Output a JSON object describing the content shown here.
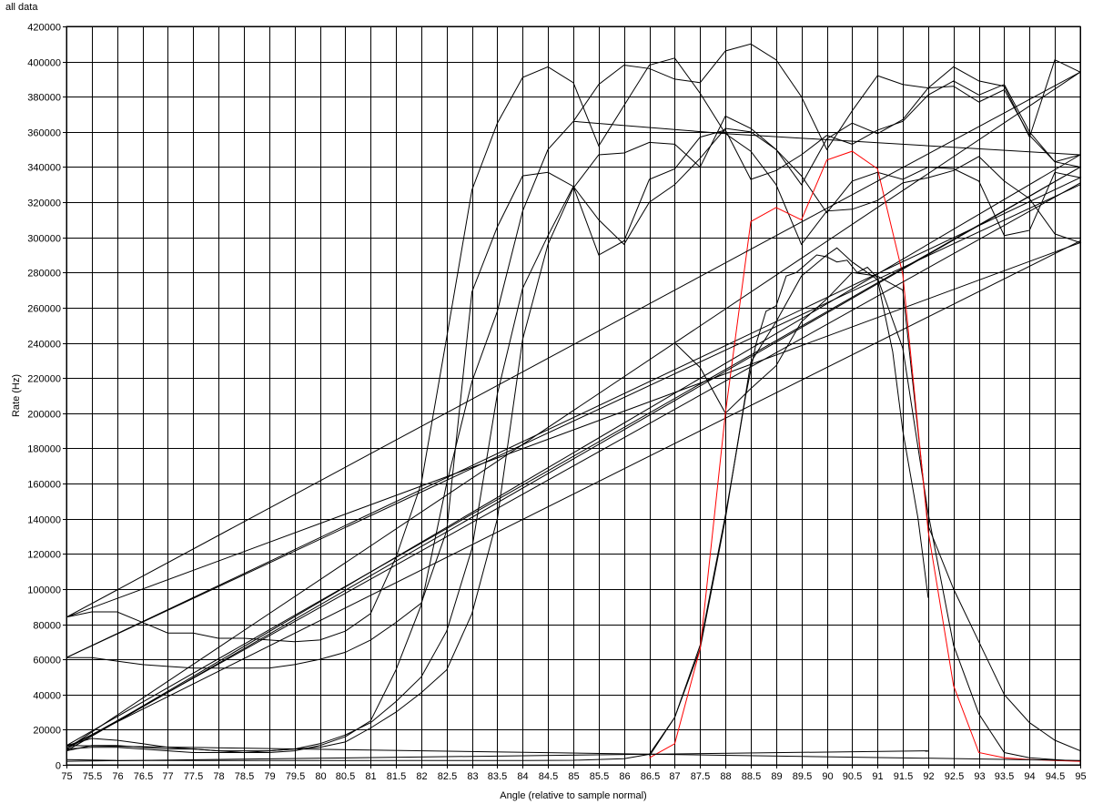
{
  "window": {
    "title": "all data"
  },
  "chart_data": {
    "type": "line",
    "title": "all data",
    "xlabel": "Angle (relative to sample normal)",
    "ylabel": "Rate (Hz)",
    "xlim": [
      75,
      95
    ],
    "ylim": [
      0,
      420000
    ],
    "x_ticks": [
      "75",
      "75.5",
      "76",
      "76.5",
      "77",
      "77.5",
      "78",
      "78.5",
      "79",
      "79.5",
      "80",
      "80.5",
      "81",
      "81.5",
      "82",
      "82.5",
      "83",
      "83.5",
      "84",
      "84.5",
      "85",
      "85.5",
      "86",
      "86.5",
      "87",
      "87.5",
      "88",
      "88.5",
      "89",
      "89.5",
      "90",
      "90.5",
      "91",
      "91.5",
      "92",
      "92.5",
      "93",
      "93.5",
      "94",
      "94.5",
      "95"
    ],
    "y_ticks": [
      "0",
      "20000",
      "40000",
      "60000",
      "80000",
      "100000",
      "120000",
      "140000",
      "160000",
      "180000",
      "200000",
      "220000",
      "240000",
      "260000",
      "280000",
      "300000",
      "320000",
      "340000",
      "360000",
      "380000",
      "400000",
      "420000"
    ],
    "grid": true,
    "legend": "none",
    "series": [
      {
        "color": "#000000",
        "x": [
          75,
          75.5,
          76,
          76.5,
          77,
          77.5,
          78,
          78.5,
          79,
          79.5,
          80,
          80.5,
          81,
          81.5,
          82,
          82.5,
          83,
          83.5,
          84,
          84.5,
          85,
          85.5,
          86,
          86.5,
          87,
          87.5,
          88,
          88.5,
          89,
          89.5,
          90,
          90.5,
          91,
          91.5,
          92,
          92.5,
          93,
          93.5,
          94,
          94.5,
          95,
          75
        ],
        "y": [
          84000,
          87000,
          87000,
          81000,
          75000,
          75000,
          72000,
          72000,
          71000,
          70000,
          71000,
          76000,
          86000,
          118000,
          160000,
          243000,
          327000,
          365000,
          391000,
          397000,
          388000,
          352000,
          375000,
          398000,
          402000,
          382000,
          359000,
          349000,
          330000,
          296000,
          315000,
          316000,
          321000,
          331000,
          334000,
          338000,
          346000,
          332000,
          322000,
          302000,
          297000,
          84000
        ]
      },
      {
        "color": "#000000",
        "x": [
          75,
          75.5,
          76,
          76.5,
          77,
          77.5,
          78,
          78.5,
          79,
          79.5,
          80,
          80.5,
          81,
          81.5,
          82,
          82.5,
          83,
          83.5,
          84,
          84.5,
          85,
          85.5,
          86,
          86.5,
          87,
          87.5,
          88,
          88.5,
          89,
          89.5,
          90,
          90.5,
          91,
          91.5,
          92,
          92.5,
          93,
          93.5,
          94,
          94.5,
          95,
          75
        ],
        "y": [
          61000,
          61000,
          59000,
          57000,
          56000,
          55000,
          55000,
          55000,
          55000,
          57000,
          60000,
          64000,
          71000,
          81000,
          92000,
          133000,
          269000,
          306000,
          335000,
          337000,
          329000,
          310000,
          296000,
          320000,
          330000,
          345000,
          362000,
          360000,
          350000,
          335000,
          314000,
          332000,
          337000,
          333000,
          340000,
          339000,
          332000,
          301000,
          304000,
          337000,
          334000,
          61000
        ]
      },
      {
        "color": "#000000",
        "x": [
          75,
          75.5,
          76,
          76.5,
          77,
          77.5,
          78,
          78.5,
          79,
          79.5,
          80,
          80.5,
          81,
          81.5,
          82,
          82.5,
          83,
          83.5,
          84,
          84.5,
          85,
          85.5,
          86,
          86.5,
          87,
          87.5,
          88,
          88.5,
          89,
          89.5,
          90,
          90.5,
          91,
          91.5,
          92,
          92.5,
          93,
          93.5,
          94,
          94.5,
          95,
          75
        ],
        "y": [
          8000,
          11000,
          11000,
          10000,
          9000,
          9000,
          8000,
          8000,
          8000,
          9000,
          12000,
          17000,
          24000,
          36000,
          50000,
          76000,
          123000,
          211000,
          271000,
          301000,
          329000,
          290000,
          298000,
          333000,
          339000,
          357000,
          361000,
          333000,
          338000,
          347000,
          358000,
          353000,
          361000,
          366000,
          381000,
          389000,
          381000,
          387000,
          360000,
          343000,
          347000,
          8000
        ]
      },
      {
        "color": "#000000",
        "x": [
          75,
          75.5,
          76,
          76.5,
          77,
          77.5,
          78,
          78.5,
          79,
          79.5,
          80,
          80.5,
          81,
          81.5,
          82,
          82.5,
          83,
          83.5,
          84,
          84.5,
          85,
          85.5,
          86,
          86.5,
          87,
          87.5,
          88,
          88.5,
          89,
          89.5,
          90,
          90.5,
          91,
          91.5,
          92,
          92.5,
          93,
          93.5,
          94,
          94.5,
          95,
          75
        ],
        "y": [
          11000,
          15000,
          14000,
          12000,
          10000,
          9000,
          8000,
          7000,
          8000,
          9000,
          10000,
          13000,
          21000,
          30000,
          41000,
          54000,
          86000,
          140000,
          242000,
          296000,
          328000,
          347000,
          348000,
          354000,
          353000,
          340000,
          369000,
          362000,
          350000,
          330000,
          356000,
          365000,
          359000,
          367000,
          385000,
          386000,
          377000,
          384000,
          358000,
          343000,
          340000,
          11000
        ]
      },
      {
        "color": "#000000",
        "x": [
          75,
          75.5,
          76,
          76.5,
          77,
          77.5,
          78,
          78.5,
          79,
          79.5,
          80,
          80.5,
          81,
          81.5,
          82,
          82.5,
          83,
          83.5,
          84,
          84.5,
          85,
          85.5,
          86,
          86.5,
          87,
          87.5,
          88,
          88.5,
          89,
          89.5,
          90,
          90.5,
          91,
          91.5,
          92,
          92.5,
          93,
          93.5,
          94,
          94.5,
          95,
          75
        ],
        "y": [
          9000,
          10000,
          10000,
          9000,
          8000,
          7000,
          7000,
          7000,
          7000,
          8000,
          11000,
          16000,
          25000,
          54000,
          91000,
          160000,
          218000,
          258000,
          315000,
          350000,
          366000,
          387000,
          398000,
          396000,
          390000,
          388000,
          406000,
          410000,
          401000,
          380000,
          350000,
          372000,
          392000,
          387000,
          385000,
          397000,
          389000,
          386000,
          357000,
          401000,
          394000,
          9000
        ]
      },
      {
        "color": "#000000",
        "x": [
          85,
          88,
          95
        ],
        "y": [
          366000,
          359000,
          347000
        ]
      },
      {
        "color": "#000000",
        "x": [
          75,
          95
        ],
        "y": [
          10000,
          298000
        ]
      },
      {
        "color": "#000000",
        "x": [
          87,
          87.5,
          88,
          88.5,
          89,
          89.5,
          90,
          90.5,
          91,
          91.5,
          92,
          92.5,
          93,
          93.5,
          94,
          94.5,
          95
        ],
        "y": [
          240000,
          226000,
          200000,
          214000,
          227000,
          252000,
          265000,
          280000,
          278000,
          270000,
          136000,
          100000,
          70000,
          40000,
          24000,
          14000,
          8000
        ]
      },
      {
        "color": "#000000",
        "x": [
          75,
          76,
          77,
          78,
          79,
          80,
          81,
          82,
          83,
          84,
          85,
          86,
          86.5,
          87,
          87.5,
          88,
          88.5,
          89,
          89.5,
          90,
          90.2,
          90.5,
          91,
          91.3,
          91.5,
          91.8,
          92
        ],
        "y": [
          3000,
          2500,
          2500,
          2500,
          2500,
          2500,
          2500,
          2500,
          2500,
          2500,
          2600,
          3500,
          6000,
          27000,
          66000,
          140000,
          229000,
          252000,
          278000,
          290000,
          294000,
          286000,
          276000,
          235000,
          190000,
          140000,
          95000
        ]
      },
      {
        "color": "#000000",
        "x": [
          86.5,
          87,
          87.5,
          88,
          88.2,
          88.4,
          88.6,
          88.8,
          89,
          89.2,
          89.4,
          89.6,
          89.8,
          90,
          90.2,
          90.4,
          90.6,
          90.8,
          91,
          91.5,
          92,
          92.5,
          93,
          93.5,
          94,
          94.5,
          95
        ],
        "y": [
          5000,
          27000,
          68000,
          142000,
          175000,
          210000,
          239000,
          258000,
          261000,
          278000,
          280000,
          285000,
          290000,
          289000,
          286000,
          287000,
          280000,
          283000,
          277000,
          237000,
          143000,
          68000,
          29000,
          7000,
          4000,
          3000,
          2000
        ]
      },
      {
        "color": "#ff0000",
        "x": [
          86.5,
          87,
          87.5,
          88,
          88.5,
          89,
          89.5,
          90,
          90.5,
          91,
          91.5,
          92,
          92.5,
          93,
          93.5,
          94,
          94.5,
          95
        ],
        "y": [
          4000,
          12000,
          66000,
          200000,
          309000,
          317000,
          310000,
          344000,
          349000,
          339000,
          279000,
          133000,
          45000,
          7000,
          4000,
          3000,
          2500,
          2000
        ]
      }
    ],
    "extra_lines": [
      {
        "color": "#000000",
        "x": [
          75,
          95
        ],
        "y": [
          84000,
          394000
        ]
      },
      {
        "color": "#000000",
        "x": [
          75,
          95
        ],
        "y": [
          61000,
          330000
        ]
      },
      {
        "color": "#000000",
        "x": [
          75,
          95
        ],
        "y": [
          8000,
          340000
        ]
      },
      {
        "color": "#000000",
        "x": [
          75,
          95
        ],
        "y": [
          9000,
          331000
        ]
      },
      {
        "color": "#000000",
        "x": [
          75,
          92
        ],
        "y": [
          2000,
          8000
        ]
      },
      {
        "color": "#000000",
        "x": [
          75,
          95
        ],
        "y": [
          11000,
          2500
        ]
      }
    ]
  }
}
